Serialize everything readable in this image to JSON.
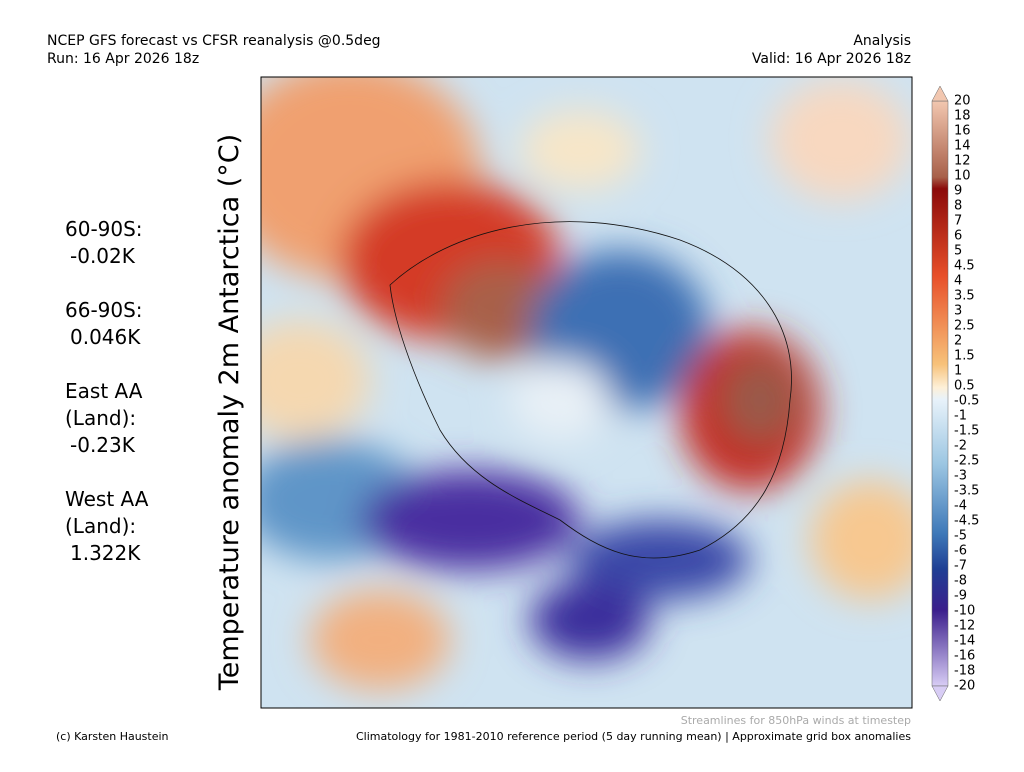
{
  "header": {
    "title": "NCEP GFS forecast vs CFSR reanalysis @0.5deg",
    "run": "Run: 16 Apr 2026 18z",
    "mode": "Analysis",
    "valid": "Valid: 16 Apr 2026 18z"
  },
  "y_label": "Temperature anomaly 2m Antarctica (°C)",
  "stats": [
    {
      "lines": [
        "60-90S:"
      ],
      "value": "-0.02K"
    },
    {
      "lines": [
        "66-90S:"
      ],
      "value": "0.046K"
    },
    {
      "lines": [
        "East AA",
        "(Land):"
      ],
      "value": "-0.23K"
    },
    {
      "lines": [
        "West AA",
        "(Land):"
      ],
      "value": "1.322K"
    }
  ],
  "colorbar": {
    "labels": [
      "20",
      "18",
      "16",
      "14",
      "12",
      "10",
      "9",
      "8",
      "7",
      "6",
      "5",
      "4.5",
      "4",
      "3.5",
      "3",
      "2.5",
      "2",
      "1.5",
      "1",
      "0.5",
      "-0.5",
      "-1",
      "-1.5",
      "-2",
      "-2.5",
      "-3",
      "-3.5",
      "-4",
      "-4.5",
      "-5",
      "-6",
      "-7",
      "-8",
      "-9",
      "-10",
      "-12",
      "-14",
      "-16",
      "-18",
      "-20"
    ]
  },
  "footer": {
    "credit": "(c) Karsten Haustein",
    "streamlines": "Streamlines for 850hPa winds at timestep",
    "climatology": "Climatology for 1981-2010 reference period (5 day running mean) | Approximate grid box anomalies"
  }
}
